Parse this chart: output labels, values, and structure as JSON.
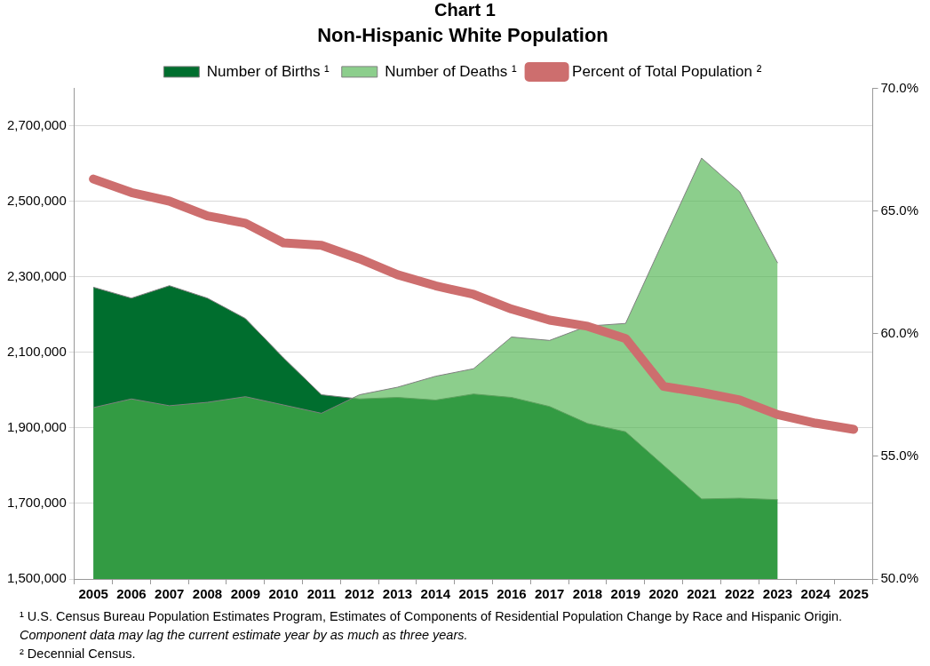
{
  "chart_data": {
    "type": "area",
    "title": "Chart 1",
    "subtitle": "Non-Hispanic White Population",
    "categories": [
      "2005",
      "2006",
      "2007",
      "2008",
      "2009",
      "2010",
      "2011",
      "2012",
      "2013",
      "2014",
      "2015",
      "2016",
      "2017",
      "2018",
      "2019",
      "2020",
      "2021",
      "2022",
      "2023",
      "2024",
      "2025"
    ],
    "series": [
      {
        "name": "Number of Births ¹",
        "color": "#006e2e",
        "values": [
          2273000,
          2244000,
          2277000,
          2244000,
          2190000,
          2086000,
          1988000,
          1977000,
          1981000,
          1974000,
          1990000,
          1981000,
          1957000,
          1912000,
          1890000,
          1801000,
          1712000,
          1714000,
          1710000,
          null,
          null
        ]
      },
      {
        "name": "Number of Deaths ¹",
        "color": "#4fb34f",
        "values": [
          1954000,
          1977000,
          1959000,
          1968000,
          1983000,
          1961000,
          1939000,
          1988000,
          2008000,
          2037000,
          2057000,
          2141000,
          2132000,
          2170000,
          2177000,
          2397000,
          2615000,
          2526000,
          2337000,
          null,
          null
        ]
      },
      {
        "name": "Percent of Total Population ²",
        "type": "line",
        "axis": "y2",
        "color": "#cd6e6e",
        "values": [
          66.3,
          65.75,
          65.4,
          64.8,
          64.5,
          63.7,
          63.6,
          63.05,
          62.4,
          61.95,
          61.6,
          61.0,
          60.55,
          60.3,
          59.8,
          57.85,
          57.6,
          57.3,
          56.7,
          56.35,
          56.1
        ]
      }
    ],
    "ylim": [
      1500000,
      2800000
    ],
    "yticks": [
      {
        "value": 1500000,
        "label": "1,500,000"
      },
      {
        "value": 1700000,
        "label": "1,700,000"
      },
      {
        "value": 1900000,
        "label": "1,900,000"
      },
      {
        "value": 2100000,
        "label": "2,100,000"
      },
      {
        "value": 2300000,
        "label": "2,300,000"
      },
      {
        "value": 2500000,
        "label": "2,500,000"
      },
      {
        "value": 2700000,
        "label": "2,700,000"
      }
    ],
    "y2lim": [
      50,
      70
    ],
    "y2ticks": [
      {
        "value": 50,
        "label": "50.0%"
      },
      {
        "value": 55,
        "label": "55.0%"
      },
      {
        "value": 60,
        "label": "60.0%"
      },
      {
        "value": 65,
        "label": "65.0%"
      },
      {
        "value": 70,
        "label": "70.0%"
      }
    ],
    "grid": "y",
    "legend": "top",
    "marker": "none",
    "annotations": [
      "¹ U.S. Census Bureau Population Estimates Program, Estimates of Components of Residential Population Change by Race and Hispanic Origin.",
      "Component data may lag the current estimate year by as much as three years.",
      "² Decennial Census."
    ]
  }
}
